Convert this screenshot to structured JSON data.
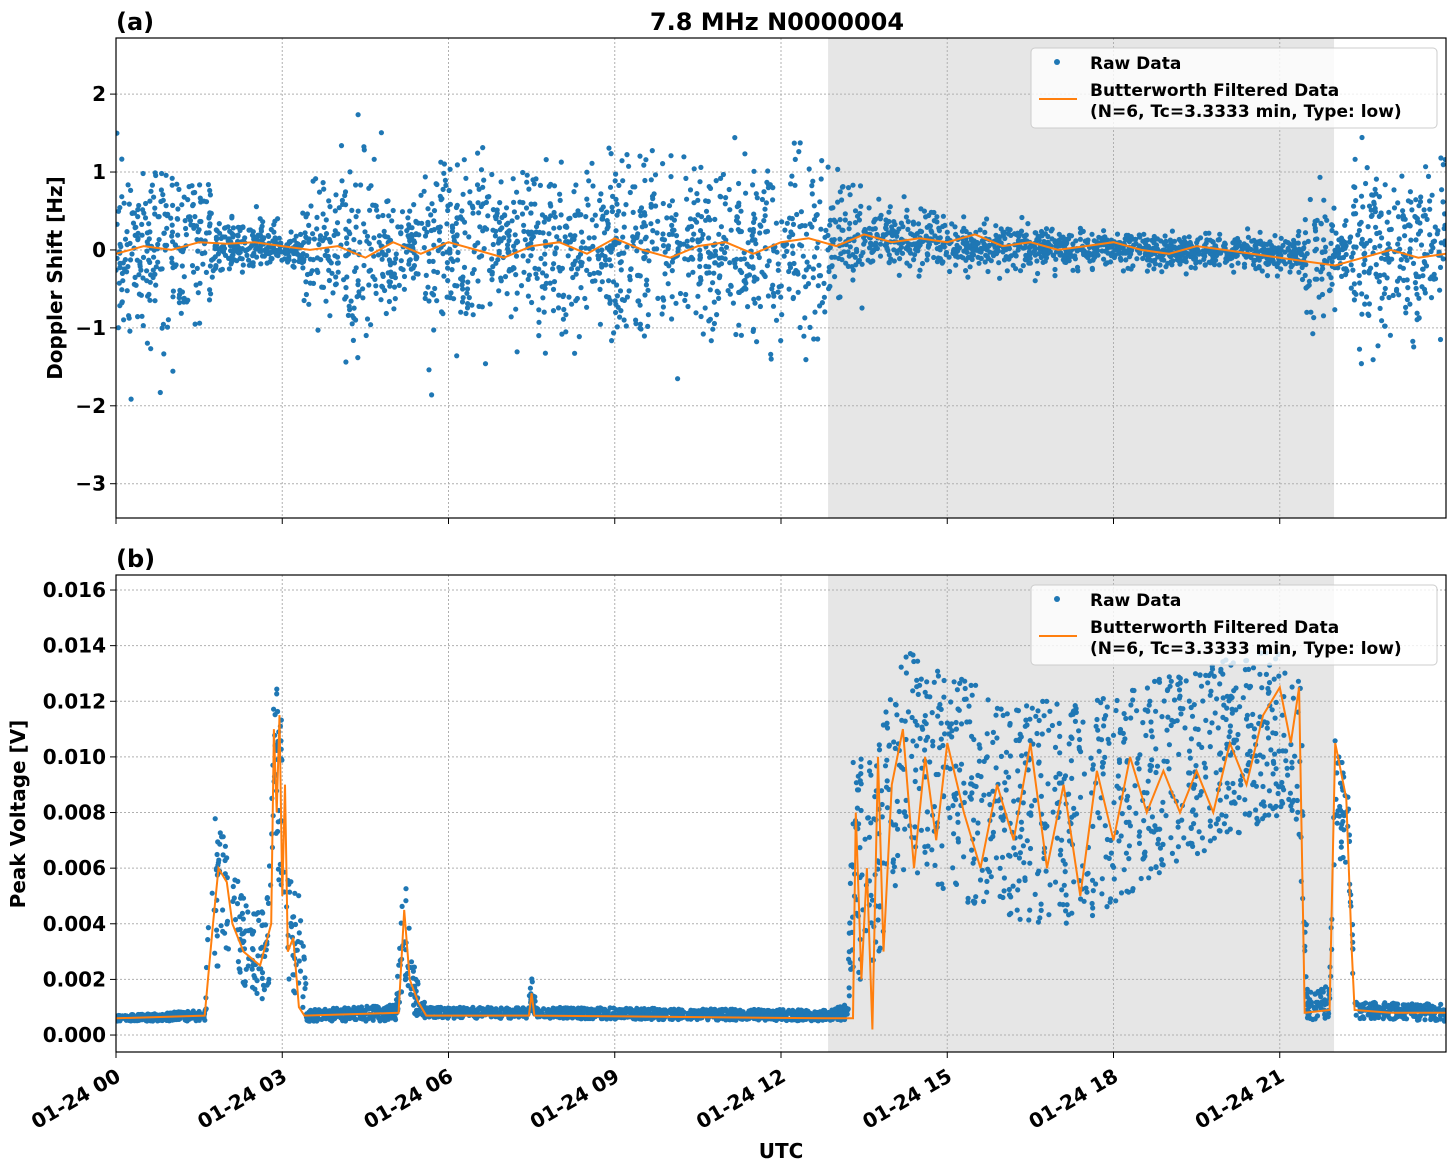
{
  "chart_data": [
    {
      "panel_label": "(a)",
      "title": "7.8 MHz N0000004",
      "type": "scatter+line",
      "xlabel": "",
      "ylabel": "Doppler Shift [Hz]",
      "xlim_hours": [
        0,
        24
      ],
      "ylim": [
        -3.44,
        2.72
      ],
      "yticks": [
        2,
        1,
        0,
        -1,
        -2,
        -3
      ],
      "ytick_labels": [
        "2",
        "1",
        "0",
        "−1",
        "−2",
        "−3"
      ],
      "grid": true,
      "legend": "top-right",
      "shaded_region_hours": [
        12.85,
        21.98
      ],
      "raw_envelope": [
        [
          0,
          0,
          1.0
        ],
        [
          1.7,
          0,
          1.0
        ],
        [
          1.75,
          0.05,
          0.3
        ],
        [
          2.9,
          0.05,
          0.3
        ],
        [
          3.0,
          0.0,
          0.2
        ],
        [
          3.35,
          0.0,
          0.2
        ],
        [
          3.4,
          0,
          1.0
        ],
        [
          5.15,
          0,
          1.0
        ],
        [
          5.25,
          0,
          0.4
        ],
        [
          5.45,
          0,
          0.4
        ],
        [
          5.5,
          0,
          1.0
        ],
        [
          12.8,
          0,
          1.0
        ],
        [
          12.9,
          0.1,
          0.7
        ],
        [
          13.45,
          0.1,
          0.7
        ],
        [
          13.55,
          0.15,
          0.3
        ],
        [
          16,
          0.05,
          0.25
        ],
        [
          18,
          0.0,
          0.2
        ],
        [
          21.4,
          -0.05,
          0.2
        ],
        [
          21.5,
          -0.1,
          0.8
        ],
        [
          21.95,
          -0.1,
          0.8
        ],
        [
          22.05,
          -0.1,
          0.3
        ],
        [
          22.25,
          -0.1,
          0.3
        ],
        [
          22.35,
          0,
          1.0
        ],
        [
          24,
          0,
          1.0
        ]
      ],
      "filtered_step_hours": 0.5,
      "filtered_values": [
        -0.05,
        0.05,
        0.0,
        0.1,
        0.08,
        0.1,
        0.05,
        0.0,
        0.05,
        -0.1,
        0.1,
        -0.05,
        0.1,
        0.0,
        -0.1,
        0.05,
        0.1,
        -0.05,
        0.15,
        0.0,
        -0.1,
        0.05,
        0.1,
        -0.05,
        0.1,
        0.15,
        0.05,
        0.2,
        0.1,
        0.15,
        0.1,
        0.2,
        0.05,
        0.1,
        0.0,
        0.05,
        0.1,
        0.0,
        -0.05,
        0.05,
        0.0,
        -0.05,
        -0.1,
        -0.15,
        -0.2,
        -0.1,
        0.0,
        -0.1,
        -0.05
      ],
      "series": [
        {
          "name": "Raw Data",
          "color": "#1f77b4"
        },
        {
          "name": "Butterworth Filtered Data\n(N=6, Tc=3.3333 min, Type: low)",
          "color": "#ff7f0e"
        }
      ]
    },
    {
      "panel_label": "(b)",
      "type": "scatter+line",
      "xlabel": "UTC",
      "ylabel": "Peak Voltage [V]",
      "xlim_hours": [
        0,
        24
      ],
      "ylim": [
        -0.00061,
        0.01654
      ],
      "yticks": [
        0.016,
        0.014,
        0.012,
        0.01,
        0.008,
        0.006,
        0.004,
        0.002,
        0.0
      ],
      "ytick_labels": [
        "0.016",
        "0.014",
        "0.012",
        "0.010",
        "0.008",
        "0.006",
        "0.004",
        "0.002",
        "0.000"
      ],
      "xticks_hours": [
        0,
        3,
        6,
        9,
        12,
        15,
        18,
        21
      ],
      "xtick_labels": [
        "01-24 00",
        "01-24 03",
        "01-24 06",
        "01-24 09",
        "01-24 12",
        "01-24 15",
        "01-24 18",
        "01-24 21"
      ],
      "grid": true,
      "legend": "top-right",
      "shaded_region_hours": [
        12.85,
        21.98
      ],
      "raw_envelope": [
        [
          0,
          0.0006,
          0.0001
        ],
        [
          1.6,
          0.0007,
          0.0002
        ],
        [
          1.75,
          0.005,
          0.003
        ],
        [
          2.0,
          0.005,
          0.002
        ],
        [
          2.4,
          0.003,
          0.0015
        ],
        [
          2.75,
          0.003,
          0.002
        ],
        [
          2.85,
          0.01,
          0.003
        ],
        [
          3.0,
          0.008,
          0.004
        ],
        [
          3.1,
          0.004,
          0.002
        ],
        [
          3.35,
          0.003,
          0.002
        ],
        [
          3.45,
          0.0007,
          0.0002
        ],
        [
          5.05,
          0.0008,
          0.0003
        ],
        [
          5.2,
          0.004,
          0.002
        ],
        [
          5.4,
          0.0015,
          0.0008
        ],
        [
          5.6,
          0.0008,
          0.0002
        ],
        [
          7.4,
          0.0008,
          0.0002
        ],
        [
          7.5,
          0.0015,
          0.0006
        ],
        [
          7.6,
          0.0008,
          0.0002
        ],
        [
          12.8,
          0.0007,
          0.0002
        ],
        [
          13.2,
          0.0008,
          0.0003
        ],
        [
          13.3,
          0.006,
          0.004
        ],
        [
          13.7,
          0.006,
          0.004
        ],
        [
          14.0,
          0.009,
          0.004
        ],
        [
          14.3,
          0.01,
          0.004
        ],
        [
          16,
          0.008,
          0.004
        ],
        [
          17.5,
          0.008,
          0.004
        ],
        [
          19,
          0.0095,
          0.0035
        ],
        [
          21.1,
          0.011,
          0.003
        ],
        [
          21.4,
          0.009,
          0.004
        ],
        [
          21.5,
          0.001,
          0.0005
        ],
        [
          21.9,
          0.0012,
          0.0006
        ],
        [
          22.0,
          0.009,
          0.002
        ],
        [
          22.25,
          0.007,
          0.002
        ],
        [
          22.35,
          0.0009,
          0.0003
        ],
        [
          24,
          0.0008,
          0.0003
        ]
      ],
      "filtered_points": [
        [
          0,
          0.0006
        ],
        [
          1.6,
          0.0007
        ],
        [
          1.75,
          0.004
        ],
        [
          1.85,
          0.006
        ],
        [
          2.0,
          0.0055
        ],
        [
          2.1,
          0.004
        ],
        [
          2.3,
          0.003
        ],
        [
          2.6,
          0.0025
        ],
        [
          2.8,
          0.004
        ],
        [
          2.85,
          0.011
        ],
        [
          2.9,
          0.008
        ],
        [
          2.95,
          0.0115
        ],
        [
          3.0,
          0.005
        ],
        [
          3.05,
          0.009
        ],
        [
          3.1,
          0.003
        ],
        [
          3.2,
          0.0035
        ],
        [
          3.3,
          0.001
        ],
        [
          3.4,
          0.0007
        ],
        [
          5.1,
          0.0008
        ],
        [
          5.2,
          0.0045
        ],
        [
          5.3,
          0.002
        ],
        [
          5.45,
          0.0012
        ],
        [
          5.6,
          0.0007
        ],
        [
          7.45,
          0.0007
        ],
        [
          7.5,
          0.0015
        ],
        [
          7.55,
          0.0007
        ],
        [
          12.8,
          0.0006
        ],
        [
          13.3,
          0.0006
        ],
        [
          13.35,
          0.008
        ],
        [
          13.45,
          0.002
        ],
        [
          13.55,
          0.006
        ],
        [
          13.65,
          0.0002
        ],
        [
          13.75,
          0.01
        ],
        [
          13.85,
          0.003
        ],
        [
          14.0,
          0.009
        ],
        [
          14.2,
          0.011
        ],
        [
          14.4,
          0.006
        ],
        [
          14.6,
          0.01
        ],
        [
          14.8,
          0.007
        ],
        [
          15.0,
          0.0105
        ],
        [
          15.3,
          0.008
        ],
        [
          15.6,
          0.006
        ],
        [
          15.9,
          0.009
        ],
        [
          16.2,
          0.007
        ],
        [
          16.5,
          0.0105
        ],
        [
          16.8,
          0.006
        ],
        [
          17.1,
          0.009
        ],
        [
          17.4,
          0.005
        ],
        [
          17.7,
          0.0095
        ],
        [
          18.0,
          0.007
        ],
        [
          18.3,
          0.01
        ],
        [
          18.6,
          0.008
        ],
        [
          18.9,
          0.0095
        ],
        [
          19.2,
          0.008
        ],
        [
          19.5,
          0.0095
        ],
        [
          19.8,
          0.008
        ],
        [
          20.1,
          0.0105
        ],
        [
          20.4,
          0.009
        ],
        [
          20.7,
          0.0115
        ],
        [
          21.0,
          0.0125
        ],
        [
          21.2,
          0.0105
        ],
        [
          21.35,
          0.0125
        ],
        [
          21.45,
          0.0008
        ],
        [
          21.9,
          0.0009
        ],
        [
          22.0,
          0.0105
        ],
        [
          22.2,
          0.0085
        ],
        [
          22.3,
          0.003
        ],
        [
          22.35,
          0.0009
        ],
        [
          23,
          0.0008
        ],
        [
          24,
          0.0008
        ]
      ],
      "series": [
        {
          "name": "Raw Data",
          "color": "#1f77b4"
        },
        {
          "name": "Butterworth Filtered Data\n(N=6, Tc=3.3333 min, Type: low)",
          "color": "#ff7f0e"
        }
      ]
    }
  ],
  "legend": {
    "raw": "Raw Data",
    "filtered_line1": "Butterworth Filtered Data",
    "filtered_line2": "(N=6, Tc=3.3333 min, Type: low)"
  },
  "colors": {
    "raw": "#1f77b4",
    "filtered": "#ff7f0e",
    "shade": "#e6e6e6"
  }
}
